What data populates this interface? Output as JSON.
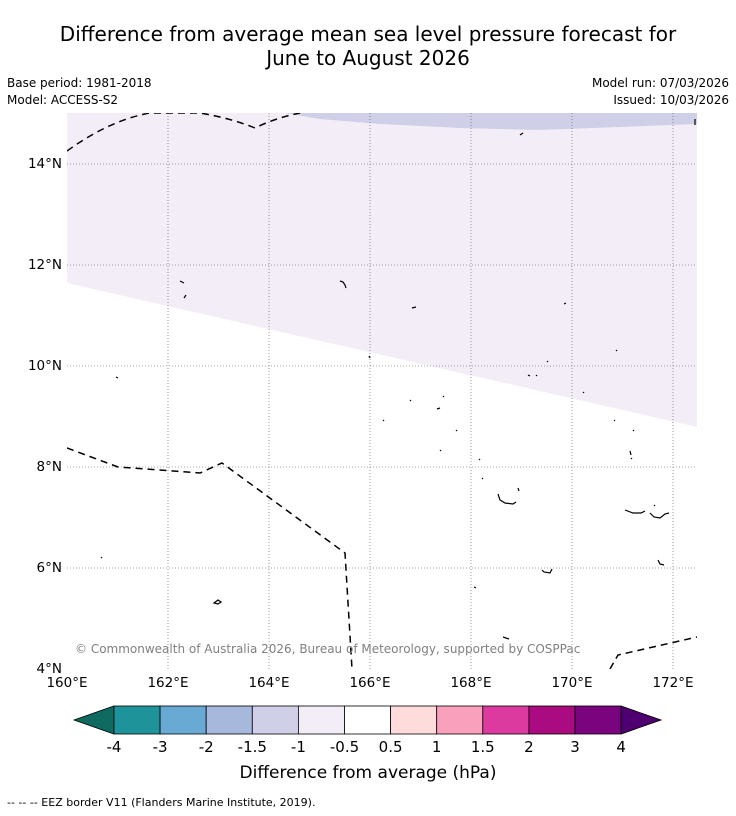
{
  "title_line1": "Difference from average mean sea level pressure forecast for",
  "title_line2": "June to August 2026",
  "base_period": "Base period: 1981-2018",
  "model": "Model: ACCESS-S2",
  "model_run": "Model run: 07/03/2026",
  "issued": "Issued: 10/03/2026",
  "copyright": "© Commonwealth of Australia 2026, Bureau of Meteorology, supported by COSPPac",
  "lat_labels": [
    "14°N",
    "12°N",
    "10°N",
    "8°N",
    "6°N",
    "4°N"
  ],
  "lon_labels": [
    "160°E",
    "162°E",
    "164°E",
    "166°E",
    "168°E",
    "170°E",
    "172°E"
  ],
  "colorbar": {
    "title": "Difference from average (hPa)",
    "ticks": [
      "-4",
      "-3",
      "-2",
      "-1.5",
      "-1",
      "-0.5",
      "0.5",
      "1",
      "1.5",
      "2",
      "3",
      "4"
    ],
    "colors": [
      "#0f6b62",
      "#1e9399",
      "#68aad4",
      "#a6b9dc",
      "#cfcfe8",
      "#f3edf7",
      "#ffffff",
      "#fedcdc",
      "#f9a0bc",
      "#dc3a9e",
      "#ab0b80",
      "#7a047e",
      "#4f0070"
    ]
  },
  "footer": "--  --  -- EEZ border V11 (Flanders Marine Institute, 2019)."
}
